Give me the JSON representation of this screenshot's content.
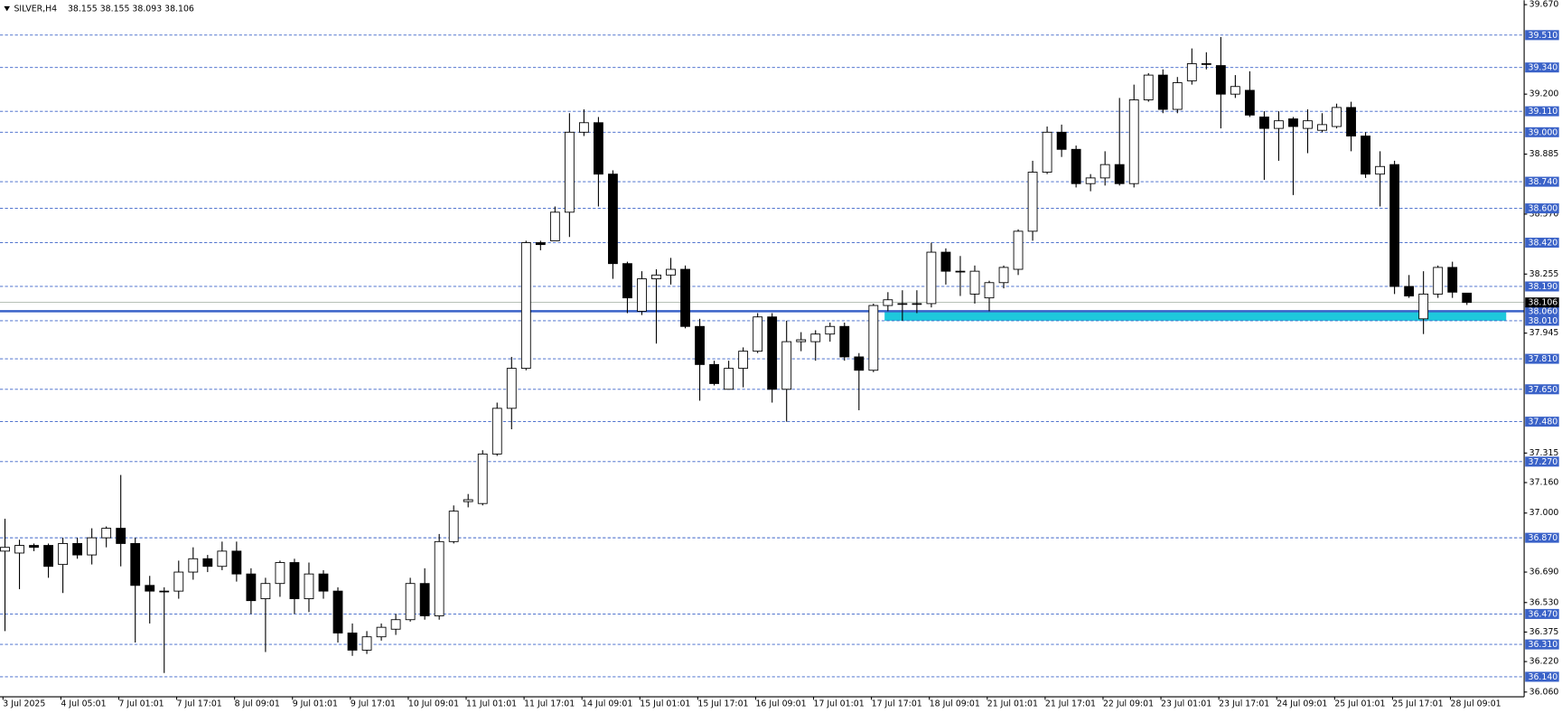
{
  "chart_data": {
    "type": "candlestick",
    "title": "SILVER,H4",
    "last_bar": "38.155 38.155 38.093 38.106",
    "categories": [
      "3 Jul 2025",
      null,
      null,
      null,
      "4 Jul 05:01",
      null,
      null,
      null,
      "7 Jul 01:01",
      null,
      null,
      null,
      "7 Jul 17:01",
      null,
      null,
      null,
      "8 Jul 09:01",
      null,
      null,
      null,
      "9 Jul 01:01",
      null,
      null,
      null,
      "9 Jul 17:01",
      null,
      null,
      null,
      "10 Jul 09:01",
      null,
      null,
      null,
      "11 Jul 01:01",
      null,
      null,
      null,
      "11 Jul 17:01",
      null,
      null,
      null,
      "14 Jul 09:01",
      null,
      null,
      null,
      "15 Jul 01:01",
      null,
      null,
      null,
      "15 Jul 17:01",
      null,
      null,
      null,
      "16 Jul 09:01",
      null,
      null,
      null,
      "17 Jul 01:01",
      null,
      null,
      null,
      "17 Jul 17:01",
      null,
      null,
      null,
      "18 Jul 09:01",
      null,
      null,
      null,
      "21 Jul 01:01",
      null,
      null,
      null,
      "21 Jul 17:01",
      null,
      null,
      null,
      "22 Jul 09:01",
      null,
      null,
      null,
      "23 Jul 01:01",
      null,
      null,
      null,
      "23 Jul 17:01",
      null,
      null,
      null,
      "24 Jul 09:01",
      null,
      null,
      null,
      "25 Jul 01:01",
      null,
      null,
      null,
      "25 Jul 17:01",
      null,
      null,
      null,
      "28 Jul 09:01",
      null
    ],
    "open": [
      36.8,
      36.79,
      36.83,
      36.83,
      36.73,
      36.84,
      36.78,
      36.87,
      36.92,
      36.84,
      36.62,
      36.59,
      36.59,
      36.69,
      36.76,
      36.72,
      36.8,
      36.68,
      36.55,
      36.63,
      36.74,
      36.55,
      36.68,
      36.59,
      36.37,
      36.28,
      36.35,
      36.39,
      36.44,
      36.63,
      36.46,
      36.85,
      37.06,
      37.05,
      37.31,
      37.55,
      37.76,
      38.42,
      38.43,
      38.58,
      39.0,
      39.05,
      38.78,
      38.31,
      38.06,
      38.23,
      38.25,
      38.28,
      37.98,
      37.78,
      37.65,
      37.76,
      37.85,
      38.03,
      37.65,
      37.9,
      37.9,
      37.94,
      37.98,
      37.82,
      37.75,
      38.09,
      38.1,
      38.1,
      38.1,
      38.37,
      38.27,
      38.15,
      38.13,
      38.21,
      38.28,
      38.48,
      38.79,
      39.0,
      38.91,
      38.73,
      38.76,
      38.83,
      38.73,
      39.17,
      39.3,
      39.12,
      39.27,
      39.36,
      39.35,
      39.2,
      39.22,
      39.08,
      39.02,
      39.07,
      39.02,
      39.01,
      39.03,
      39.13,
      38.98,
      38.78,
      38.83,
      38.19,
      38.02,
      38.15,
      38.29,
      38.155
    ],
    "high": [
      36.97,
      36.86,
      36.84,
      36.84,
      36.87,
      36.87,
      36.92,
      36.93,
      37.2,
      36.87,
      36.67,
      36.61,
      36.75,
      36.82,
      36.78,
      36.85,
      36.85,
      36.71,
      36.66,
      36.75,
      36.76,
      36.74,
      36.7,
      36.61,
      36.42,
      36.38,
      36.42,
      36.47,
      36.66,
      36.71,
      36.89,
      37.04,
      37.1,
      37.33,
      37.58,
      37.82,
      38.43,
      38.43,
      38.61,
      39.1,
      39.12,
      39.08,
      38.8,
      38.32,
      38.27,
      38.28,
      38.34,
      38.3,
      38.02,
      37.8,
      37.8,
      37.87,
      38.05,
      38.05,
      38.01,
      37.95,
      37.96,
      38.0,
      38.0,
      37.84,
      38.1,
      38.16,
      38.17,
      38.17,
      38.42,
      38.39,
      38.35,
      38.3,
      38.22,
      38.3,
      38.49,
      38.85,
      39.03,
      39.04,
      38.93,
      38.78,
      38.9,
      39.18,
      39.25,
      39.31,
      39.33,
      39.29,
      39.44,
      39.42,
      39.5,
      39.3,
      39.32,
      39.11,
      39.11,
      39.08,
      39.12,
      39.1,
      39.15,
      39.16,
      39.0,
      38.9,
      38.85,
      38.25,
      38.27,
      38.3,
      38.32,
      38.155
    ],
    "low": [
      36.38,
      36.6,
      36.8,
      36.66,
      36.58,
      36.76,
      36.73,
      36.82,
      36.72,
      36.32,
      36.42,
      36.16,
      36.55,
      36.65,
      36.69,
      36.7,
      36.64,
      36.47,
      36.27,
      36.56,
      36.47,
      36.48,
      36.55,
      36.32,
      36.25,
      36.26,
      36.33,
      36.36,
      36.43,
      36.44,
      36.44,
      36.84,
      37.03,
      37.04,
      37.3,
      37.44,
      37.75,
      38.38,
      38.43,
      38.45,
      38.98,
      38.61,
      38.23,
      38.05,
      38.04,
      37.89,
      38.2,
      37.97,
      37.59,
      37.67,
      37.65,
      37.66,
      37.84,
      37.58,
      37.48,
      37.85,
      37.8,
      37.9,
      37.8,
      37.54,
      37.74,
      38.06,
      38.01,
      38.05,
      38.08,
      38.2,
      38.14,
      38.1,
      38.06,
      38.18,
      38.25,
      38.43,
      38.78,
      38.87,
      38.71,
      38.69,
      38.72,
      38.72,
      38.71,
      39.16,
      39.1,
      39.1,
      39.25,
      39.33,
      39.02,
      39.18,
      39.08,
      38.75,
      38.85,
      38.67,
      38.89,
      39.0,
      39.02,
      38.9,
      38.76,
      38.61,
      38.15,
      38.13,
      37.94,
      38.13,
      38.13,
      38.093
    ],
    "close": [
      36.82,
      36.83,
      36.82,
      36.72,
      36.84,
      36.78,
      36.87,
      36.92,
      36.84,
      36.62,
      36.59,
      36.59,
      36.69,
      36.76,
      36.72,
      36.8,
      36.68,
      36.54,
      36.63,
      36.74,
      36.55,
      36.68,
      36.59,
      36.37,
      36.28,
      36.35,
      36.4,
      36.44,
      36.63,
      36.46,
      36.85,
      37.01,
      37.07,
      37.31,
      37.55,
      37.76,
      38.42,
      38.41,
      38.58,
      39.0,
      39.05,
      38.78,
      38.31,
      38.13,
      38.23,
      38.25,
      38.28,
      37.98,
      37.78,
      37.68,
      37.76,
      37.85,
      38.03,
      37.65,
      37.9,
      37.91,
      37.94,
      37.98,
      37.82,
      37.75,
      38.09,
      38.12,
      38.1,
      38.1,
      38.37,
      38.27,
      38.27,
      38.27,
      38.21,
      38.29,
      38.48,
      38.79,
      39.0,
      38.91,
      38.73,
      38.76,
      38.83,
      38.73,
      39.17,
      39.3,
      39.12,
      39.26,
      39.36,
      39.36,
      39.2,
      39.24,
      39.09,
      39.02,
      39.06,
      39.03,
      39.06,
      39.04,
      39.13,
      38.98,
      38.78,
      38.82,
      38.19,
      38.14,
      38.15,
      38.29,
      38.16,
      38.106
    ],
    "bull_color": "#ffffff",
    "bear_color": "#000000",
    "ylim": [
      36.035,
      39.693
    ],
    "yticks": [
      {
        "value": 39.67,
        "label": "39.670"
      },
      {
        "value": 39.2,
        "label": "39.200"
      },
      38.885,
      {
        "value": 38.57,
        "label": "38.570"
      },
      38.255,
      37.945,
      37.315,
      {
        "value": 37.16,
        "label": "37.160"
      },
      {
        "value": 37.0,
        "label": "37.000"
      },
      {
        "value": 36.69,
        "label": "36.690"
      },
      {
        "value": 36.53,
        "label": "36.530"
      },
      36.375,
      {
        "value": 36.22,
        "label": "36.220"
      },
      {
        "value": 36.06,
        "label": "36.060"
      }
    ],
    "levels": [
      {
        "value": 39.51,
        "label": "39.510"
      },
      {
        "value": 39.34,
        "label": "39.340"
      },
      {
        "value": 39.11,
        "label": "39.110"
      },
      {
        "value": 39.0,
        "label": "39.000"
      },
      {
        "value": 38.74,
        "label": "38.740"
      },
      {
        "value": 38.6,
        "label": "38.600"
      },
      {
        "value": 38.42,
        "label": "38.420"
      },
      {
        "value": 38.19,
        "label": "38.190"
      },
      {
        "value": 38.01,
        "label": "38.010"
      },
      {
        "value": 37.81,
        "label": "37.810"
      },
      {
        "value": 37.65,
        "label": "37.650"
      },
      {
        "value": 37.48,
        "label": "37.480"
      },
      {
        "value": 37.27,
        "label": "37.270"
      },
      {
        "value": 36.87,
        "label": "36.870"
      },
      {
        "value": 36.47,
        "label": "36.470"
      },
      {
        "value": 36.31,
        "label": "36.310"
      },
      {
        "value": 36.14,
        "label": "36.140"
      }
    ],
    "level_color": "#3a62c8",
    "support": {
      "value": 38.06,
      "label": "38.060"
    },
    "zone": [
      38.01,
      38.06
    ],
    "zone_color": "#1ec8dc",
    "last_price": 38.106
  }
}
